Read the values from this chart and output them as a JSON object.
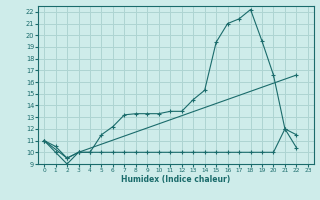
{
  "xlabel": "Humidex (Indice chaleur)",
  "bg_color": "#ceecea",
  "grid_color": "#aed4d2",
  "line_color": "#1a6b6b",
  "xlim": [
    -0.5,
    23.5
  ],
  "ylim": [
    9,
    22.5
  ],
  "xticks": [
    0,
    1,
    2,
    3,
    4,
    5,
    6,
    7,
    8,
    9,
    10,
    11,
    12,
    13,
    14,
    15,
    16,
    17,
    18,
    19,
    20,
    21,
    22,
    23
  ],
  "yticks": [
    9,
    10,
    11,
    12,
    13,
    14,
    15,
    16,
    17,
    18,
    19,
    20,
    21,
    22
  ],
  "line1_x": [
    0,
    1,
    2,
    3,
    4,
    5,
    6,
    7,
    8,
    9,
    10,
    11,
    12,
    13,
    14,
    15,
    16,
    17,
    18,
    19,
    20,
    21,
    22
  ],
  "line1_y": [
    11.0,
    10.0,
    9.0,
    10.0,
    10.0,
    11.5,
    12.2,
    13.2,
    13.3,
    13.3,
    13.3,
    13.5,
    13.5,
    14.5,
    15.3,
    19.4,
    21.0,
    21.4,
    22.2,
    19.5,
    16.6,
    12.0,
    11.5
  ],
  "line2_x": [
    0,
    1,
    2,
    3,
    4,
    5,
    6,
    7,
    8,
    9,
    10,
    11,
    12,
    13,
    14,
    15,
    16,
    17,
    18,
    19,
    20,
    21,
    22
  ],
  "line2_y": [
    11.0,
    10.5,
    9.5,
    10.0,
    10.0,
    10.0,
    10.0,
    10.0,
    10.0,
    10.0,
    10.0,
    10.0,
    10.0,
    10.0,
    10.0,
    10.0,
    10.0,
    10.0,
    10.0,
    10.0,
    10.0,
    12.0,
    10.4
  ],
  "line3_x": [
    0,
    2,
    3,
    22
  ],
  "line3_y": [
    11.0,
    9.5,
    10.0,
    16.6
  ]
}
